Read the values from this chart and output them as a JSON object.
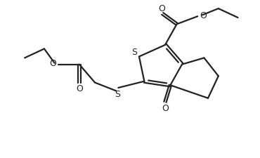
{
  "bg_color": "#ffffff",
  "line_color": "#222222",
  "lw": 1.6,
  "fig_w": 3.7,
  "fig_h": 2.26,
  "dpi": 100,
  "xlim": [
    0,
    10
  ],
  "ylim": [
    0,
    6
  ]
}
